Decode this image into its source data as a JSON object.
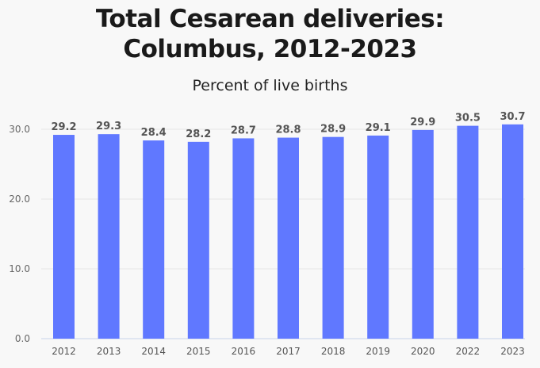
{
  "chart_data": {
    "type": "bar",
    "title_lines": [
      "Total Cesarean deliveries:",
      "Columbus, 2012-2023"
    ],
    "subtitle": "Percent of live births",
    "categories": [
      "2012",
      "2013",
      "2014",
      "2015",
      "2016",
      "2017",
      "2018",
      "2019",
      "2020",
      "2022",
      "2023"
    ],
    "values": [
      29.2,
      29.3,
      28.4,
      28.2,
      28.7,
      28.8,
      28.9,
      29.1,
      29.9,
      30.5,
      30.7
    ],
    "data_labels": [
      "29.2",
      "29.3",
      "28.4",
      "28.2",
      "28.7",
      "28.8",
      "28.9",
      "29.1",
      "29.9",
      "30.5",
      "30.7"
    ],
    "yticks": [
      "0.0",
      "10.0",
      "20.0",
      "30.0"
    ],
    "ylim": [
      0,
      30
    ],
    "xlabel": "",
    "ylabel": "",
    "grid": true,
    "bar_color": "#6078ff"
  }
}
